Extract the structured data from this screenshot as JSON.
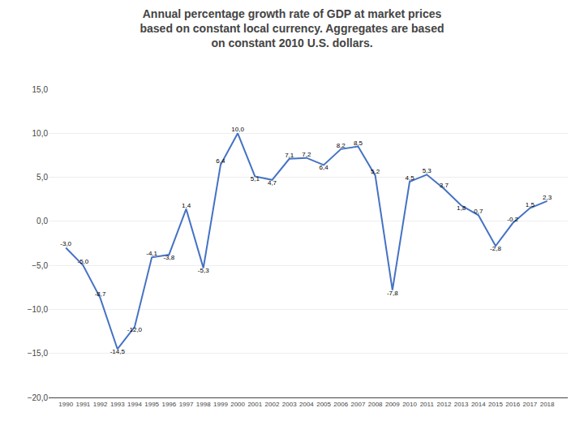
{
  "chart_data": {
    "type": "line",
    "title": "Annual percentage growth rate of GDP at market prices\nbased on constant local currency. Aggregates are based\non constant 2010 U.S. dollars.",
    "x": [
      1990,
      1991,
      1992,
      1993,
      1994,
      1995,
      1996,
      1997,
      1998,
      1999,
      2000,
      2001,
      2002,
      2003,
      2004,
      2005,
      2006,
      2007,
      2008,
      2009,
      2010,
      2011,
      2012,
      2013,
      2014,
      2015,
      2016,
      2017,
      2018
    ],
    "values": [
      -3.0,
      -5.0,
      -8.7,
      -14.5,
      -12.0,
      -4.1,
      -3.8,
      1.4,
      -5.3,
      6.4,
      10.0,
      5.1,
      4.7,
      7.1,
      7.2,
      6.4,
      8.2,
      8.5,
      5.2,
      -7.8,
      4.5,
      5.3,
      3.7,
      1.8,
      0.7,
      -2.8,
      -0.2,
      1.5,
      2.3
    ],
    "value_labels": [
      "-3,0",
      "-5,0",
      "-8,7",
      "-14,5",
      "-12,0",
      "-4,1",
      "-3,8",
      "1,4",
      "-5,3",
      "6,4",
      "10,0",
      "5,1",
      "4,7",
      "7,1",
      "7,2",
      "6,4",
      "8,2",
      "8,5",
      "5,2",
      "-7,8",
      "4,5",
      "5,3",
      "3,7",
      "1,8",
      "0,7",
      "-2,8",
      "-0,2",
      "1,5",
      "2,3"
    ],
    "data_labels": true,
    "color": "#4472c4",
    "xlim": [
      1989.0,
      2019.2
    ],
    "xticks": [
      1990,
      1991,
      1992,
      1993,
      1994,
      1995,
      1996,
      1997,
      1998,
      1999,
      2000,
      2001,
      2002,
      2003,
      2004,
      2005,
      2006,
      2007,
      2008,
      2009,
      2010,
      2011,
      2012,
      2013,
      2014,
      2015,
      2016,
      2017,
      2018
    ],
    "ylim": [
      -20,
      15
    ],
    "yticks": [
      {
        "value": -20,
        "label": "−20,0"
      },
      {
        "value": -15,
        "label": "−15,0"
      },
      {
        "value": -10,
        "label": "−10,0"
      },
      {
        "value": -5,
        "label": "−5,0"
      },
      {
        "value": 0,
        "label": "0,0"
      },
      {
        "value": 5,
        "label": "5,0"
      },
      {
        "value": 10,
        "label": "10,0"
      },
      {
        "value": 15,
        "label": "15,0"
      }
    ],
    "grid": "y"
  }
}
